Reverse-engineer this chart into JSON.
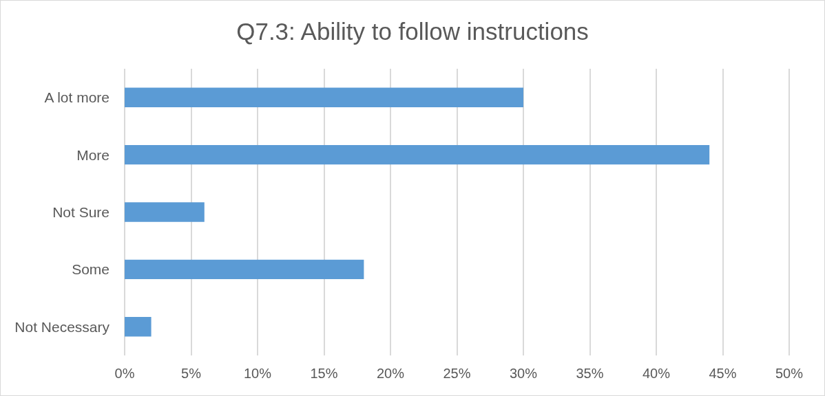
{
  "chart_data": {
    "type": "bar",
    "orientation": "horizontal",
    "title": "Q7.3: Ability to follow instructions",
    "categories": [
      "A lot more",
      "More",
      "Not Sure",
      "Some",
      "Not Necessary"
    ],
    "values": [
      30,
      44,
      6,
      18,
      2
    ],
    "color": "#5b9bd5",
    "xlim": [
      0,
      50
    ],
    "xticks": [
      {
        "value": 0,
        "label": "0%"
      },
      {
        "value": 5,
        "label": "5%"
      },
      {
        "value": 10,
        "label": "10%"
      },
      {
        "value": 15,
        "label": "15%"
      },
      {
        "value": 20,
        "label": "20%"
      },
      {
        "value": 25,
        "label": "25%"
      },
      {
        "value": 30,
        "label": "30%"
      },
      {
        "value": 35,
        "label": "35%"
      },
      {
        "value": 40,
        "label": "40%"
      },
      {
        "value": 45,
        "label": "45%"
      },
      {
        "value": 50,
        "label": "50%"
      }
    ],
    "grid": "x"
  }
}
